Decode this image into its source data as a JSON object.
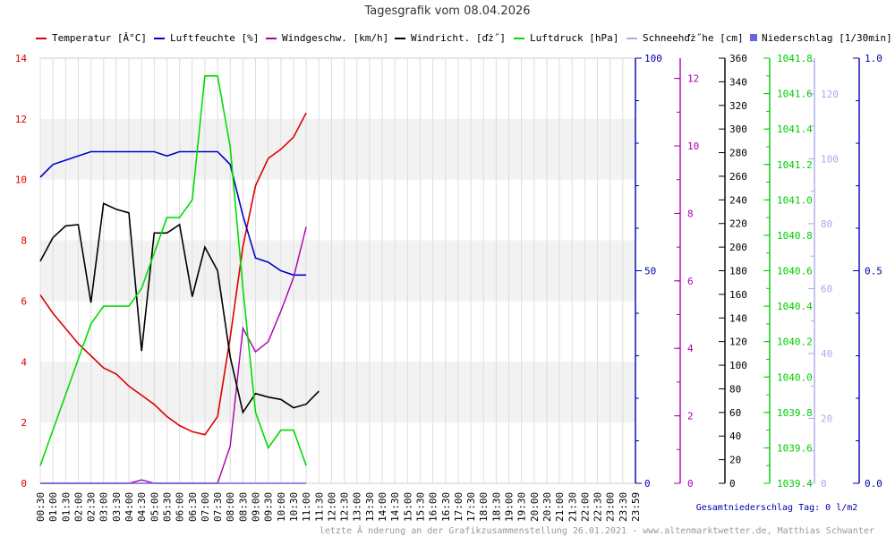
{
  "chart_data": {
    "type": "line",
    "title": "Tagesgrafik vom 08.04.2026",
    "time_labels": [
      "00:30",
      "01:00",
      "01:30",
      "02:00",
      "02:30",
      "03:00",
      "03:30",
      "04:00",
      "04:30",
      "05:00",
      "05:30",
      "06:00",
      "06:30",
      "07:00",
      "07:30",
      "08:00",
      "08:30",
      "09:00",
      "09:30",
      "10:00",
      "10:30",
      "11:00",
      "11:30",
      "12:00",
      "12:30",
      "13:00",
      "13:30",
      "14:00",
      "14:30",
      "15:00",
      "15:30",
      "16:00",
      "16:30",
      "17:00",
      "17:30",
      "18:00",
      "18:30",
      "19:00",
      "19:30",
      "20:00",
      "20:30",
      "21:00",
      "21:30",
      "22:00",
      "22:30",
      "23:00",
      "23:30",
      "23:59"
    ],
    "x_observed": [
      "00:30",
      "01:00",
      "01:30",
      "02:00",
      "02:30",
      "03:00",
      "03:30",
      "04:00",
      "04:30",
      "05:00",
      "05:30",
      "06:00",
      "06:30",
      "07:00",
      "07:30",
      "08:00",
      "08:30",
      "09:00",
      "09:30",
      "10:00",
      "10:30",
      "11:00",
      "11:30"
    ],
    "grid": true,
    "legend_position": "top",
    "series": [
      {
        "name": "Temperatur [Â°C]",
        "color": "#dd0000",
        "axis": "temp",
        "values": [
          6.2,
          5.6,
          5.1,
          4.6,
          4.2,
          3.8,
          3.6,
          3.2,
          2.9,
          2.6,
          2.2,
          1.9,
          1.7,
          1.6,
          2.2,
          4.8,
          7.8,
          9.8,
          10.7,
          11.0,
          11.4,
          12.2,
          12.2
        ],
        "plot_points": 22
      },
      {
        "name": "Luftfeuchte [%]",
        "color": "#0000cc",
        "axis": "humidity",
        "values": [
          72,
          75,
          76,
          77,
          78,
          78,
          78,
          78,
          78,
          78,
          77,
          78,
          78,
          78,
          78,
          75,
          63,
          53,
          52,
          50,
          49,
          49,
          47
        ],
        "plot_points": 22
      },
      {
        "name": "Windgeschw. [km/h]",
        "color": "#aa00aa",
        "axis": "wind_speed",
        "values": [
          0,
          0,
          0,
          0,
          0,
          0,
          0,
          0,
          0.1,
          0,
          0,
          0,
          0,
          0,
          0,
          1.1,
          4.6,
          3.9,
          4.2,
          5.1,
          6.1,
          7.6,
          6.2
        ],
        "plot_points": 22
      },
      {
        "name": "Windricht. [ďż˝]",
        "color": "#000000",
        "axis": "wind_dir",
        "values": [
          188,
          208,
          218,
          219,
          153,
          237,
          232,
          229,
          112,
          212,
          212,
          219,
          158,
          200,
          180,
          107,
          60,
          76,
          73,
          71,
          64,
          67,
          78
        ],
        "plot_points": 23
      },
      {
        "name": "Luftdruck [hPa]",
        "color": "#00dd00",
        "axis": "pressure",
        "values": [
          1039.5,
          1039.7,
          1039.9,
          1040.1,
          1040.3,
          1040.4,
          1040.4,
          1040.4,
          1040.5,
          1040.7,
          1040.9,
          1040.9,
          1041.0,
          1041.7,
          1041.7,
          1041.3,
          1040.5,
          1039.8,
          1039.6,
          1039.7,
          1039.7,
          1039.5,
          1039.5
        ],
        "plot_points": 22
      },
      {
        "name": "Schneehďż˝he [cm]",
        "color": "#aaaaee",
        "axis": "snow",
        "values": [],
        "plot_points": 0
      },
      {
        "name": "Niederschlag [1/30min]",
        "color": "#6666dd",
        "axis": "rain",
        "values": [
          0,
          0,
          0,
          0,
          0,
          0,
          0,
          0,
          0,
          0,
          0,
          0,
          0,
          0,
          0,
          0,
          0,
          0,
          0,
          0,
          0,
          0,
          0
        ],
        "plot_points": 22,
        "legend_marker": "square"
      }
    ],
    "axes": {
      "temp": {
        "min": 0,
        "max": 14,
        "ticks": [
          0,
          2,
          4,
          6,
          8,
          10,
          12,
          14
        ],
        "color": "#dd0000"
      },
      "humidity": {
        "min": 0,
        "max": 100,
        "ticks": [
          0,
          50,
          100
        ],
        "color": "#0000aa"
      },
      "wind_speed": {
        "min": 0,
        "max": 12.6,
        "ticks": [
          0,
          2,
          4,
          6,
          8,
          10,
          12
        ],
        "color": "#aa00aa"
      },
      "wind_dir": {
        "min": 0,
        "max": 360,
        "ticks": [
          0,
          20,
          40,
          60,
          80,
          100,
          120,
          140,
          160,
          180,
          200,
          220,
          240,
          260,
          280,
          300,
          320,
          340,
          360
        ],
        "color": "#000000"
      },
      "pressure": {
        "min": 1039.4,
        "max": 1041.8,
        "ticks": [
          1039.4,
          1039.6,
          1039.8,
          1040.0,
          1040.2,
          1040.4,
          1040.6,
          1040.8,
          1041.0,
          1041.2,
          1041.4,
          1041.6,
          1041.8
        ],
        "color": "#00cc00"
      },
      "snow": {
        "min": 0,
        "max": 131,
        "ticks": [
          0,
          20,
          40,
          60,
          80,
          100,
          120
        ],
        "color": "#aaaaee"
      },
      "rain": {
        "min": 0,
        "max": 1,
        "ticks": [
          0,
          0.5,
          1
        ],
        "tick_labels": [
          "0.0",
          "0.5",
          "1.0"
        ],
        "color": "#0000aa"
      }
    },
    "total_rain_text": "Gesamtniederschlag Tag: 0 l/m2",
    "footer_text": "letzte Ä nderung an der Grafikzusammenstellung 26.01.2021 - www.altenmarktwetter.de, Matthias Schwanter"
  }
}
